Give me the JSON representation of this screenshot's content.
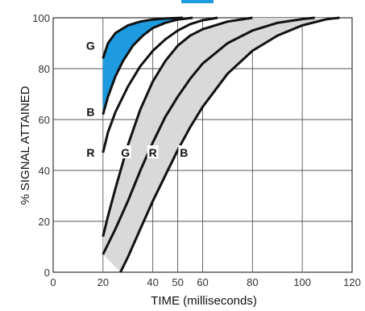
{
  "chart_data": {
    "type": "line",
    "xlabel": "TIME (milliseconds)",
    "ylabel": "% SIGNAL ATTAINED",
    "xlim": [
      0,
      120
    ],
    "ylim": [
      0,
      100
    ],
    "x_ticks": [
      "0",
      "20",
      "40",
      "50",
      "60",
      "80",
      "100",
      "120"
    ],
    "y_ticks": [
      "0",
      "20",
      "40",
      "60",
      "80",
      "100"
    ],
    "x_tick_values": [
      0,
      20,
      40,
      50,
      60,
      80,
      100,
      120
    ],
    "y_tick_values": [
      0,
      20,
      40,
      60,
      80,
      100
    ],
    "grid": true,
    "bands": [
      {
        "group": "top",
        "fill": "#1e9be0",
        "upper": [
          [
            20,
            84
          ],
          [
            22,
            90
          ],
          [
            25,
            94
          ],
          [
            30,
            97
          ],
          [
            35,
            98.5
          ],
          [
            40,
            99.3
          ],
          [
            45,
            99.7
          ],
          [
            52,
            100
          ]
        ],
        "lower": [
          [
            20,
            62
          ],
          [
            22,
            69
          ],
          [
            25,
            77
          ],
          [
            28,
            83
          ],
          [
            32,
            89
          ],
          [
            36,
            93
          ],
          [
            40,
            96
          ],
          [
            45,
            98
          ],
          [
            50,
            99.3
          ],
          [
            56,
            100
          ]
        ]
      },
      {
        "group": "top",
        "fill": "none",
        "upper": [
          [
            20,
            62
          ],
          [
            22,
            69
          ],
          [
            25,
            77
          ],
          [
            28,
            83
          ],
          [
            32,
            89
          ],
          [
            36,
            93
          ],
          [
            40,
            96
          ],
          [
            45,
            98
          ],
          [
            50,
            99.3
          ],
          [
            56,
            100
          ]
        ],
        "lower": [
          [
            20,
            47
          ],
          [
            22,
            55
          ],
          [
            25,
            63
          ],
          [
            30,
            73
          ],
          [
            35,
            81
          ],
          [
            40,
            87
          ],
          [
            45,
            91.5
          ],
          [
            50,
            95
          ],
          [
            55,
            97.5
          ],
          [
            60,
            99
          ],
          [
            66,
            100
          ]
        ]
      },
      {
        "group": "bottom",
        "fill": "#d9d9d9",
        "upper": [
          [
            20,
            14
          ],
          [
            22,
            22
          ],
          [
            25,
            33
          ],
          [
            30,
            50
          ],
          [
            35,
            64
          ],
          [
            40,
            75
          ],
          [
            45,
            83
          ],
          [
            50,
            89
          ],
          [
            55,
            93
          ],
          [
            60,
            95.5
          ],
          [
            70,
            98.5
          ],
          [
            80,
            100
          ]
        ],
        "lower": [
          [
            20,
            7
          ],
          [
            25,
            17
          ],
          [
            30,
            28
          ],
          [
            35,
            40
          ],
          [
            40,
            51
          ],
          [
            45,
            61
          ],
          [
            50,
            69
          ],
          [
            55,
            76
          ],
          [
            60,
            82
          ],
          [
            70,
            90
          ],
          [
            80,
            95
          ],
          [
            90,
            98
          ],
          [
            100,
            99.5
          ],
          [
            105,
            100
          ]
        ]
      },
      {
        "group": "bottom",
        "fill": "#d9d9d9",
        "upper": [
          [
            20,
            7
          ],
          [
            25,
            17
          ],
          [
            30,
            28
          ],
          [
            35,
            40
          ],
          [
            40,
            51
          ],
          [
            45,
            61
          ],
          [
            50,
            69
          ],
          [
            55,
            76
          ],
          [
            60,
            82
          ],
          [
            70,
            90
          ],
          [
            80,
            95
          ],
          [
            90,
            98
          ],
          [
            100,
            99.5
          ],
          [
            105,
            100
          ]
        ],
        "lower": [
          [
            27,
            0
          ],
          [
            30,
            6
          ],
          [
            35,
            17
          ],
          [
            40,
            28
          ],
          [
            45,
            38
          ],
          [
            50,
            48
          ],
          [
            55,
            57
          ],
          [
            60,
            65
          ],
          [
            70,
            78
          ],
          [
            80,
            87
          ],
          [
            90,
            93
          ],
          [
            100,
            97
          ],
          [
            110,
            99.5
          ],
          [
            115,
            100
          ]
        ]
      }
    ],
    "curve_labels": [
      {
        "text": "G",
        "x": 15,
        "y": 89
      },
      {
        "text": "B",
        "x": 15,
        "y": 63
      },
      {
        "text": "R",
        "x": 15,
        "y": 47
      },
      {
        "text": "G",
        "x": 29,
        "y": 47
      },
      {
        "text": "R",
        "x": 40,
        "y": 47
      },
      {
        "text": "B",
        "x": 52.5,
        "y": 47
      }
    ],
    "colors": {
      "highlight_band": "#1e9be0",
      "shaded_band": "#d9d9d9",
      "grid": "#555555"
    }
  }
}
